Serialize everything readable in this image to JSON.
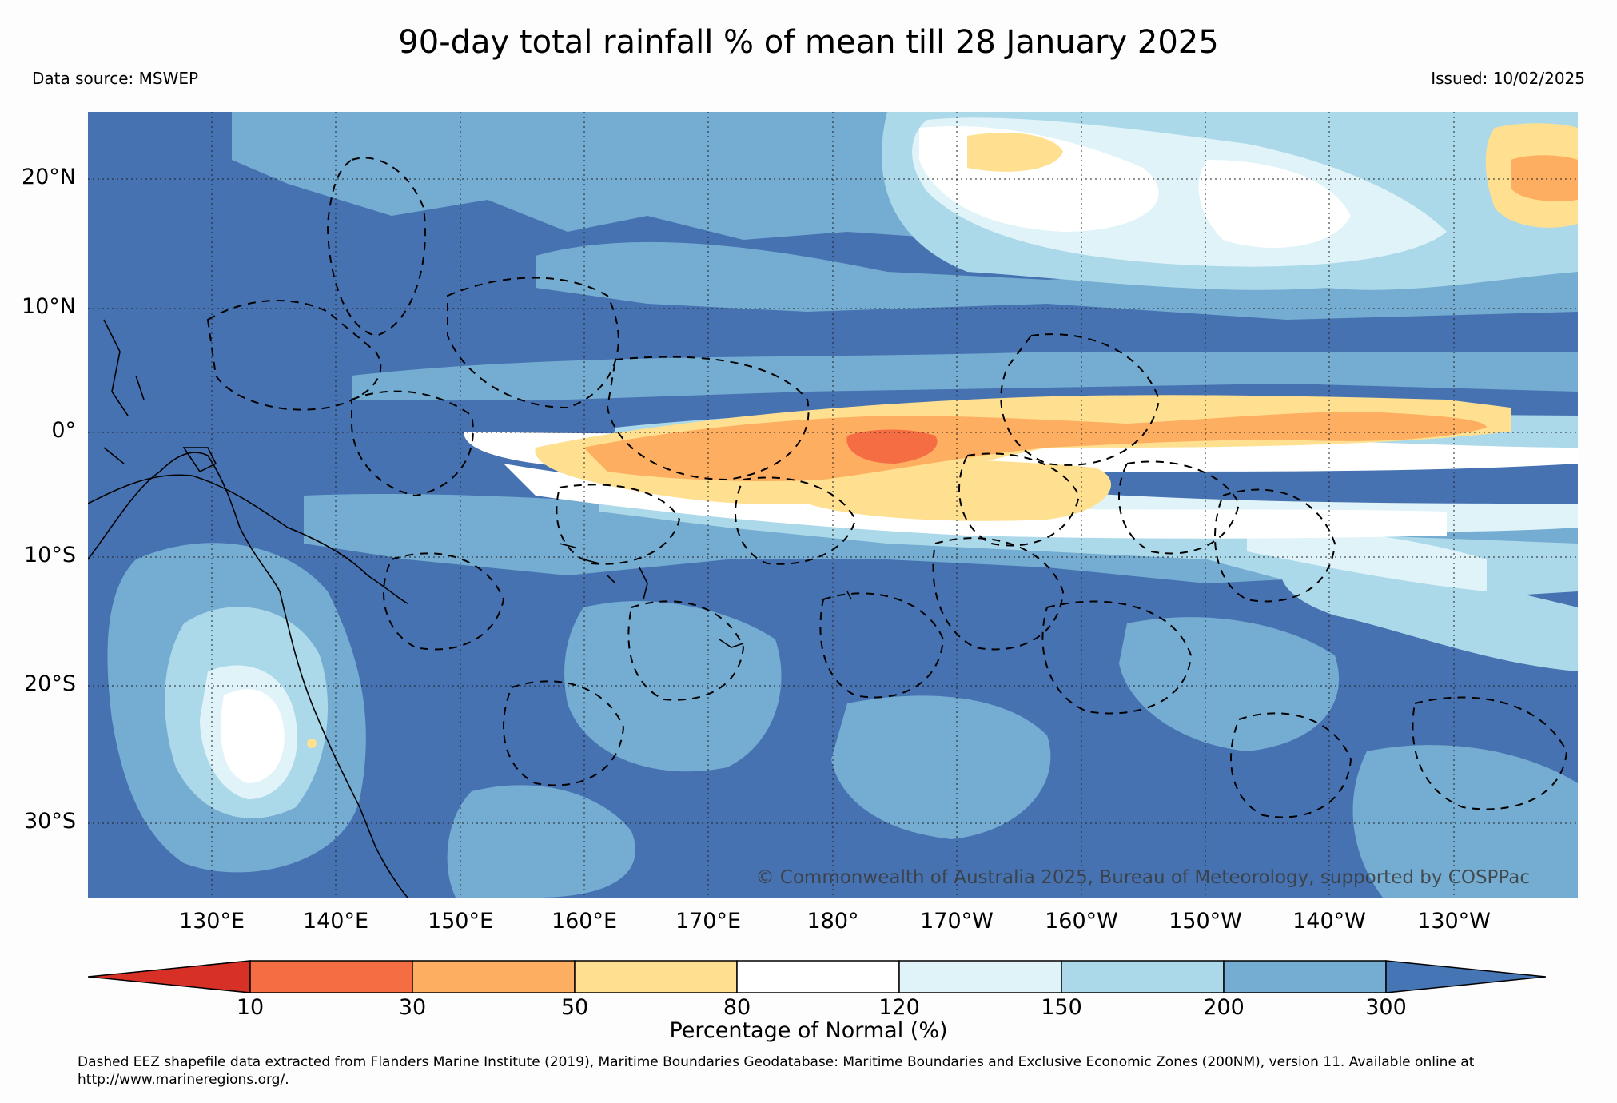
{
  "title": "90-day total rainfall % of mean till 28 January 2025",
  "data_source": "Data source: MSWEP",
  "issued": "Issued: 10/02/2025",
  "copyright": "© Commonwealth of Australia 2025, Bureau of Meteorology, supported by COSPPac",
  "lat_labels": [
    "20°N",
    "10°N",
    "0°",
    "10°S",
    "20°S",
    "30°S"
  ],
  "lon_labels": [
    "130°E",
    "140°E",
    "150°E",
    "160°E",
    "170°E",
    "180°",
    "170°W",
    "160°W",
    "150°W",
    "140°W",
    "130°W"
  ],
  "colorbar": {
    "label": "Percentage of Normal (%)",
    "ticks": [
      "10",
      "30",
      "50",
      "80",
      "120",
      "150",
      "200",
      "300"
    ],
    "colors": [
      "#d73027",
      "#f46d43",
      "#fdae61",
      "#fee090",
      "#ffffff",
      "#e0f3f8",
      "#abd9e9",
      "#74add1",
      "#4575b4"
    ]
  },
  "footnote": "Dashed EEZ shapefile data extracted from Flanders Marine Institute (2019), Maritime Boundaries Geodatabase: Maritime Boundaries and Exclusive Economic Zones (200NM), version 11. Available online at http://www.marineregions.org/.",
  "map": {
    "extent": {
      "lon": [
        120,
        240
      ],
      "lat": [
        -36,
        25
      ]
    },
    "lat_ticks": [
      20,
      10,
      0,
      -10,
      -20,
      -30
    ],
    "lon_ticks": [
      130,
      140,
      150,
      160,
      170,
      180,
      190,
      200,
      210,
      220,
      230
    ],
    "regions": [
      {
        "class": "200-300",
        "color": "#74add1",
        "zone": "tropical-north-pacific"
      },
      {
        "class": "150-200",
        "color": "#abd9e9",
        "zone": "north-central-pacific"
      },
      {
        "class": "120-150",
        "color": "#e0f3f8",
        "zone": "hawaii-region"
      },
      {
        "class": "80-120",
        "color": "#ffffff",
        "zone": "equatorial-edges"
      },
      {
        "class": "50-80",
        "color": "#fee090",
        "zone": "equatorial-pacific"
      },
      {
        "class": "30-50",
        "color": "#fdae61",
        "zone": "equatorial-core"
      },
      {
        "class": "10-30",
        "color": "#f46d43",
        "zone": "central-equatorial-max"
      },
      {
        "class": "80-120",
        "color": "#ffffff",
        "zone": "interior-australia"
      }
    ]
  }
}
